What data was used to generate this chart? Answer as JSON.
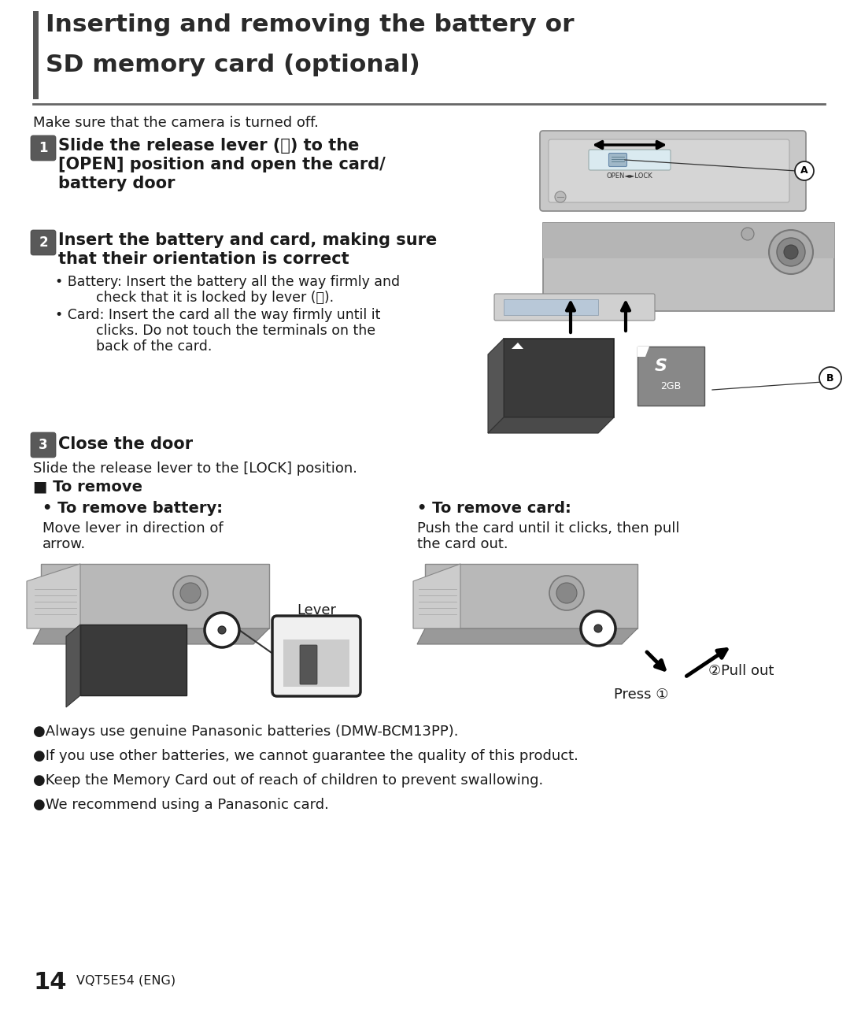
{
  "bg_color": "#ffffff",
  "title_line1": "Inserting and removing the battery or",
  "title_line2": "SD memory card (optional)",
  "title_bar_color": "#555555",
  "title_text_color": "#2a2a2a",
  "divider_color": "#666666",
  "intro_text": "Make sure that the camera is turned off.",
  "step1_bold_line1": "Slide the release lever (Ⓐ) to the",
  "step1_bold_line2": "[OPEN] position and open the card/",
  "step1_bold_line3": "battery door",
  "step2_bold_line1": "Insert the battery and card, making sure",
  "step2_bold_line2": "that their orientation is correct",
  "step2_bullet1a": "• Battery: Insert the battery all the way firmly and",
  "step2_bullet1b": "check that it is locked by lever (Ⓑ).",
  "step2_bullet2a": "• Card: Insert the card all the way firmly until it",
  "step2_bullet2b": "clicks. Do not touch the terminals on the",
  "step2_bullet2c": "back of the card.",
  "step3_bold": "Close the door",
  "step3_sub": "Slide the release lever to the [LOCK] position.",
  "remove_header": "■ To remove",
  "remove_battery_title": "• To remove battery:",
  "remove_battery_text1": "Move lever in direction of",
  "remove_battery_text2": "arrow.",
  "remove_card_title": "• To remove card:",
  "remove_card_text1": "Push the card until it clicks, then pull",
  "remove_card_text2": "the card out.",
  "lever_label": "Lever",
  "press_label": "Press ①",
  "pullout_label": "②Pull out",
  "bullet1": "●Always use genuine Panasonic batteries (DMW-BCM13PP).",
  "bullet2": "●If you use other batteries, we cannot guarantee the quality of this product.",
  "bullet3": "●Keep the Memory Card out of reach of children to prevent swallowing.",
  "bullet4": "●We recommend using a Panasonic card.",
  "page_num": "14",
  "page_code": "VQT5E54 (ENG)",
  "text_color": "#1a1a1a",
  "open_lock_text": "OPEN◄►LOCK"
}
